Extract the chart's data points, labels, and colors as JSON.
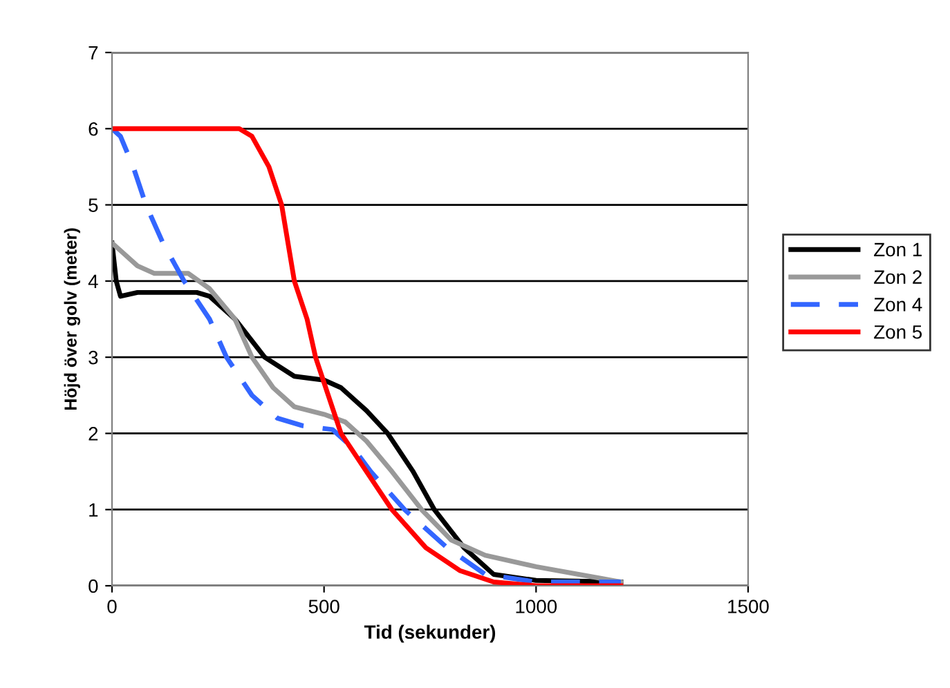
{
  "chart_data": {
    "type": "line",
    "xlabel": "Tid (sekunder)",
    "ylabel": "Höjd över golv (meter)",
    "xlim": [
      0,
      1500
    ],
    "xticks": [
      0,
      500,
      1000,
      1500
    ],
    "ylim": [
      0,
      7
    ],
    "yticks": [
      0,
      1,
      2,
      3,
      4,
      5,
      6,
      7
    ],
    "grid": "y",
    "legend": "right",
    "marker": "none",
    "series": [
      {
        "name": "Zon 1",
        "color": "#000000",
        "line_style": "solid",
        "x": [
          0,
          10,
          20,
          60,
          120,
          200,
          230,
          290,
          360,
          430,
          500,
          540,
          600,
          650,
          710,
          760,
          830,
          900,
          1000,
          1200
        ],
        "values": [
          4.5,
          4.0,
          3.8,
          3.85,
          3.85,
          3.85,
          3.8,
          3.5,
          3.0,
          2.75,
          2.7,
          2.6,
          2.3,
          2.0,
          1.5,
          1.0,
          0.5,
          0.15,
          0.07,
          0.05
        ]
      },
      {
        "name": "Zon 2",
        "color": "#999999",
        "line_style": "solid",
        "x": [
          0,
          20,
          60,
          100,
          180,
          230,
          290,
          330,
          380,
          430,
          500,
          550,
          600,
          660,
          730,
          800,
          880,
          1000,
          1150,
          1200
        ],
        "values": [
          4.5,
          4.4,
          4.2,
          4.1,
          4.1,
          3.9,
          3.5,
          3.0,
          2.6,
          2.35,
          2.25,
          2.15,
          1.9,
          1.5,
          1.0,
          0.6,
          0.4,
          0.25,
          0.1,
          0.05
        ]
      },
      {
        "name": "Zon 4",
        "color": "#3366ff",
        "line_style": "dashed",
        "x": [
          0,
          20,
          50,
          80,
          120,
          170,
          230,
          270,
          330,
          390,
          450,
          520,
          570,
          610,
          690,
          790,
          880,
          1000,
          1200
        ],
        "values": [
          6.0,
          5.9,
          5.5,
          5.0,
          4.5,
          4.0,
          3.5,
          3.0,
          2.5,
          2.2,
          2.1,
          2.05,
          1.8,
          1.5,
          1.0,
          0.5,
          0.15,
          0.05,
          0.05
        ]
      },
      {
        "name": "Zon 5",
        "color": "#ff0000",
        "line_style": "solid",
        "x": [
          0,
          300,
          330,
          370,
          400,
          430,
          460,
          480,
          510,
          540,
          600,
          660,
          740,
          820,
          900,
          1000,
          1200
        ],
        "values": [
          6.0,
          6.0,
          5.9,
          5.5,
          5.0,
          4.0,
          3.5,
          3.0,
          2.5,
          2.0,
          1.5,
          1.0,
          0.5,
          0.2,
          0.05,
          0.0,
          0.0
        ]
      }
    ]
  }
}
